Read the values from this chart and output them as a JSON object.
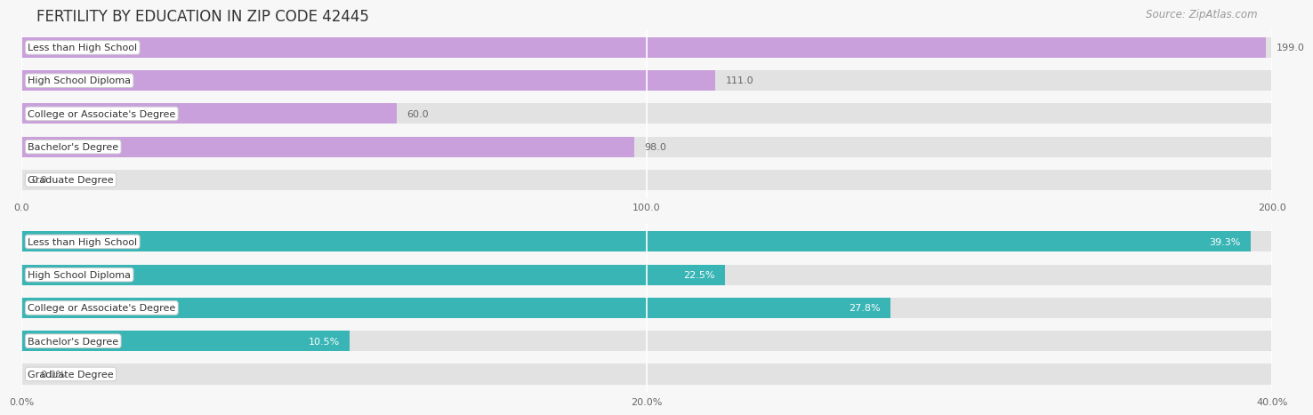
{
  "title": "FERTILITY BY EDUCATION IN ZIP CODE 42445",
  "source": "Source: ZipAtlas.com",
  "top_chart": {
    "categories": [
      "Less than High School",
      "High School Diploma",
      "College or Associate's Degree",
      "Bachelor's Degree",
      "Graduate Degree"
    ],
    "values": [
      199.0,
      111.0,
      60.0,
      98.0,
      0.0
    ],
    "bar_color": "#c9a0dc",
    "xlim": [
      0,
      200
    ],
    "xticks": [
      0.0,
      100.0,
      200.0
    ],
    "xtick_labels": [
      "0.0",
      "100.0",
      "200.0"
    ],
    "value_color": "#666666",
    "value_suffix": ""
  },
  "bottom_chart": {
    "categories": [
      "Less than High School",
      "High School Diploma",
      "College or Associate's Degree",
      "Bachelor's Degree",
      "Graduate Degree"
    ],
    "values": [
      39.3,
      22.5,
      27.8,
      10.5,
      0.0
    ],
    "bar_color": "#3ab5b5",
    "xlim": [
      0,
      40
    ],
    "xticks": [
      0.0,
      20.0,
      40.0
    ],
    "xtick_labels": [
      "0.0%",
      "20.0%",
      "40.0%"
    ],
    "value_color": "#ffffff",
    "value_suffix": "%"
  },
  "bg_color": "#f7f7f7",
  "bar_bg_color": "#e2e2e2",
  "title_fontsize": 12,
  "source_fontsize": 8.5,
  "label_fontsize": 8,
  "value_fontsize": 8
}
